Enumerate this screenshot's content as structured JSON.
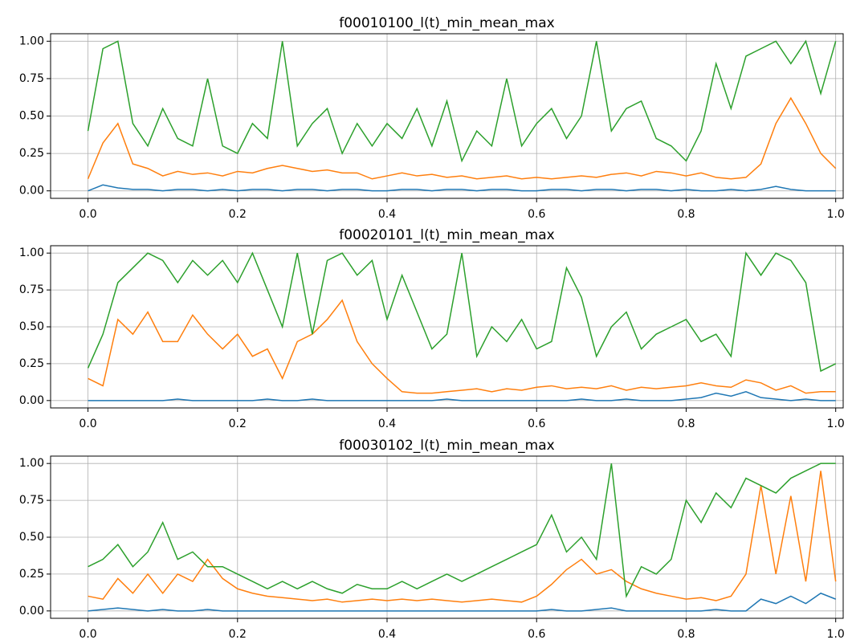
{
  "chart_data": [
    {
      "type": "line",
      "title": "f00010100_l(t)_min_mean_max",
      "x": [
        0,
        0.02,
        0.04,
        0.06,
        0.08,
        0.1,
        0.12,
        0.14,
        0.16,
        0.18,
        0.2,
        0.22,
        0.24,
        0.26,
        0.28,
        0.3,
        0.32,
        0.34,
        0.36,
        0.38,
        0.4,
        0.42,
        0.44,
        0.46,
        0.48,
        0.5,
        0.52,
        0.54,
        0.56,
        0.58,
        0.6,
        0.62,
        0.64,
        0.66,
        0.68,
        0.7,
        0.72,
        0.74,
        0.76,
        0.78,
        0.8,
        0.82,
        0.84,
        0.86,
        0.88,
        0.9,
        0.92,
        0.94,
        0.96,
        0.98,
        1
      ],
      "series": [
        {
          "color": "#1f77b4",
          "values": [
            0.0,
            0.04,
            0.02,
            0.01,
            0.01,
            0.0,
            0.01,
            0.01,
            0.0,
            0.01,
            0.0,
            0.01,
            0.01,
            0.0,
            0.01,
            0.01,
            0.0,
            0.01,
            0.01,
            0.0,
            0.0,
            0.01,
            0.01,
            0.0,
            0.01,
            0.01,
            0.0,
            0.01,
            0.01,
            0.0,
            0.0,
            0.01,
            0.01,
            0.0,
            0.01,
            0.01,
            0.0,
            0.01,
            0.01,
            0.0,
            0.01,
            0.0,
            0.0,
            0.01,
            0.0,
            0.01,
            0.03,
            0.01,
            0.0,
            0.0,
            0.0
          ]
        },
        {
          "color": "#ff7f0e",
          "values": [
            0.08,
            0.32,
            0.45,
            0.18,
            0.15,
            0.1,
            0.13,
            0.11,
            0.12,
            0.1,
            0.13,
            0.12,
            0.15,
            0.17,
            0.15,
            0.13,
            0.14,
            0.12,
            0.12,
            0.08,
            0.1,
            0.12,
            0.1,
            0.11,
            0.09,
            0.1,
            0.08,
            0.09,
            0.1,
            0.08,
            0.09,
            0.08,
            0.09,
            0.1,
            0.09,
            0.11,
            0.12,
            0.1,
            0.13,
            0.12,
            0.1,
            0.12,
            0.09,
            0.08,
            0.09,
            0.18,
            0.45,
            0.62,
            0.45,
            0.25,
            0.15
          ]
        },
        {
          "color": "#2ca02c",
          "values": [
            0.4,
            0.95,
            1.0,
            0.45,
            0.3,
            0.55,
            0.35,
            0.3,
            0.75,
            0.3,
            0.25,
            0.45,
            0.35,
            1.0,
            0.3,
            0.45,
            0.55,
            0.25,
            0.45,
            0.3,
            0.45,
            0.35,
            0.55,
            0.3,
            0.6,
            0.2,
            0.4,
            0.3,
            0.75,
            0.3,
            0.45,
            0.55,
            0.35,
            0.5,
            1.0,
            0.4,
            0.55,
            0.6,
            0.35,
            0.3,
            0.2,
            0.4,
            0.85,
            0.55,
            0.9,
            0.95,
            1.0,
            0.85,
            1.0,
            0.65,
            1.0
          ]
        }
      ],
      "xlim": [
        -0.05,
        1.01
      ],
      "ylim": [
        -0.05,
        1.05
      ],
      "xticks": [
        {
          "value": 0,
          "label": "0.0"
        },
        0.2,
        0.4,
        0.6,
        0.8,
        {
          "value": 1,
          "label": "1.0"
        }
      ],
      "yticks": [
        {
          "value": 0,
          "label": "0.00"
        },
        0.25,
        {
          "value": 0.5,
          "label": "0.50"
        },
        0.75,
        {
          "value": 1,
          "label": "1.00"
        }
      ],
      "grid": true
    },
    {
      "type": "line",
      "title": "f00020101_l(t)_min_mean_max",
      "x": [
        0,
        0.02,
        0.04,
        0.06,
        0.08,
        0.1,
        0.12,
        0.14,
        0.16,
        0.18,
        0.2,
        0.22,
        0.24,
        0.26,
        0.28,
        0.3,
        0.32,
        0.34,
        0.36,
        0.38,
        0.4,
        0.42,
        0.44,
        0.46,
        0.48,
        0.5,
        0.52,
        0.54,
        0.56,
        0.58,
        0.6,
        0.62,
        0.64,
        0.66,
        0.68,
        0.7,
        0.72,
        0.74,
        0.76,
        0.78,
        0.8,
        0.82,
        0.84,
        0.86,
        0.88,
        0.9,
        0.92,
        0.94,
        0.96,
        0.98,
        1
      ],
      "series": [
        {
          "color": "#1f77b4",
          "values": [
            0.0,
            0.0,
            0.0,
            0.0,
            0.0,
            0.0,
            0.01,
            0.0,
            0.0,
            0.0,
            0.0,
            0.0,
            0.01,
            0.0,
            0.0,
            0.01,
            0.0,
            0.0,
            0.0,
            0.0,
            0.0,
            0.0,
            0.0,
            0.0,
            0.01,
            0.0,
            0.0,
            0.0,
            0.0,
            0.0,
            0.0,
            0.0,
            0.0,
            0.01,
            0.0,
            0.0,
            0.01,
            0.0,
            0.0,
            0.0,
            0.01,
            0.02,
            0.05,
            0.03,
            0.06,
            0.02,
            0.01,
            0.0,
            0.01,
            0.0,
            0.0
          ]
        },
        {
          "color": "#ff7f0e",
          "values": [
            0.15,
            0.1,
            0.55,
            0.45,
            0.6,
            0.4,
            0.4,
            0.58,
            0.45,
            0.35,
            0.45,
            0.3,
            0.35,
            0.15,
            0.4,
            0.45,
            0.55,
            0.68,
            0.4,
            0.25,
            0.15,
            0.06,
            0.05,
            0.05,
            0.06,
            0.07,
            0.08,
            0.06,
            0.08,
            0.07,
            0.09,
            0.1,
            0.08,
            0.09,
            0.08,
            0.1,
            0.07,
            0.09,
            0.08,
            0.09,
            0.1,
            0.12,
            0.1,
            0.09,
            0.14,
            0.12,
            0.07,
            0.1,
            0.05,
            0.06,
            0.06
          ]
        },
        {
          "color": "#2ca02c",
          "values": [
            0.22,
            0.45,
            0.8,
            0.9,
            1.0,
            0.95,
            0.8,
            0.95,
            0.85,
            0.95,
            0.8,
            1.0,
            0.75,
            0.5,
            1.0,
            0.45,
            0.95,
            1.0,
            0.85,
            0.95,
            0.55,
            0.85,
            0.6,
            0.35,
            0.45,
            1.0,
            0.3,
            0.5,
            0.4,
            0.55,
            0.35,
            0.4,
            0.9,
            0.7,
            0.3,
            0.5,
            0.6,
            0.35,
            0.45,
            0.5,
            0.55,
            0.4,
            0.45,
            0.3,
            1.0,
            0.85,
            1.0,
            0.95,
            0.8,
            0.2,
            0.25
          ]
        }
      ],
      "xlim": [
        -0.05,
        1.01
      ],
      "ylim": [
        -0.05,
        1.05
      ],
      "xticks": [
        {
          "value": 0,
          "label": "0.0"
        },
        0.2,
        0.4,
        0.6,
        0.8,
        {
          "value": 1,
          "label": "1.0"
        }
      ],
      "yticks": [
        {
          "value": 0,
          "label": "0.00"
        },
        0.25,
        {
          "value": 0.5,
          "label": "0.50"
        },
        0.75,
        {
          "value": 1,
          "label": "1.00"
        }
      ],
      "grid": true
    },
    {
      "type": "line",
      "title": "f00030102_l(t)_min_mean_max",
      "x": [
        0,
        0.02,
        0.04,
        0.06,
        0.08,
        0.1,
        0.12,
        0.14,
        0.16,
        0.18,
        0.2,
        0.22,
        0.24,
        0.26,
        0.28,
        0.3,
        0.32,
        0.34,
        0.36,
        0.38,
        0.4,
        0.42,
        0.44,
        0.46,
        0.48,
        0.5,
        0.52,
        0.54,
        0.56,
        0.58,
        0.6,
        0.62,
        0.64,
        0.66,
        0.68,
        0.7,
        0.72,
        0.74,
        0.76,
        0.78,
        0.8,
        0.82,
        0.84,
        0.86,
        0.88,
        0.9,
        0.92,
        0.94,
        0.96,
        0.98,
        1
      ],
      "series": [
        {
          "color": "#1f77b4",
          "values": [
            0.0,
            0.01,
            0.02,
            0.01,
            0.0,
            0.01,
            0.0,
            0.0,
            0.01,
            0.0,
            0.0,
            0.0,
            0.0,
            0.0,
            0.0,
            0.0,
            0.0,
            0.0,
            0.0,
            0.0,
            0.0,
            0.0,
            0.0,
            0.0,
            0.0,
            0.0,
            0.0,
            0.0,
            0.0,
            0.0,
            0.0,
            0.01,
            0.0,
            0.0,
            0.01,
            0.02,
            0.0,
            0.0,
            0.0,
            0.0,
            0.0,
            0.0,
            0.01,
            0.0,
            0.0,
            0.08,
            0.05,
            0.1,
            0.05,
            0.12,
            0.08
          ]
        },
        {
          "color": "#ff7f0e",
          "values": [
            0.1,
            0.08,
            0.22,
            0.12,
            0.25,
            0.12,
            0.25,
            0.2,
            0.35,
            0.22,
            0.15,
            0.12,
            0.1,
            0.09,
            0.08,
            0.07,
            0.08,
            0.06,
            0.07,
            0.08,
            0.07,
            0.08,
            0.07,
            0.08,
            0.07,
            0.06,
            0.07,
            0.08,
            0.07,
            0.06,
            0.1,
            0.18,
            0.28,
            0.35,
            0.25,
            0.28,
            0.2,
            0.15,
            0.12,
            0.1,
            0.08,
            0.09,
            0.07,
            0.1,
            0.25,
            0.85,
            0.25,
            0.78,
            0.2,
            0.95,
            0.2
          ]
        },
        {
          "color": "#2ca02c",
          "values": [
            0.3,
            0.35,
            0.45,
            0.3,
            0.4,
            0.6,
            0.35,
            0.4,
            0.3,
            0.3,
            0.25,
            0.2,
            0.15,
            0.2,
            0.15,
            0.2,
            0.15,
            0.12,
            0.18,
            0.15,
            0.15,
            0.2,
            0.15,
            0.2,
            0.25,
            0.2,
            0.25,
            0.3,
            0.35,
            0.4,
            0.45,
            0.65,
            0.4,
            0.5,
            0.35,
            1.0,
            0.1,
            0.3,
            0.25,
            0.35,
            0.75,
            0.6,
            0.8,
            0.7,
            0.9,
            0.85,
            0.8,
            0.9,
            0.95,
            1.0,
            1.0
          ]
        }
      ],
      "xlim": [
        -0.05,
        1.01
      ],
      "ylim": [
        -0.05,
        1.05
      ],
      "xticks": [
        {
          "value": 0,
          "label": "0.0"
        },
        0.2,
        0.4,
        0.6,
        0.8,
        {
          "value": 1,
          "label": "1.0"
        }
      ],
      "yticks": [
        {
          "value": 0,
          "label": "0.00"
        },
        0.25,
        {
          "value": 0.5,
          "label": "0.50"
        },
        0.75,
        {
          "value": 1,
          "label": "1.00"
        }
      ],
      "grid": true
    }
  ]
}
